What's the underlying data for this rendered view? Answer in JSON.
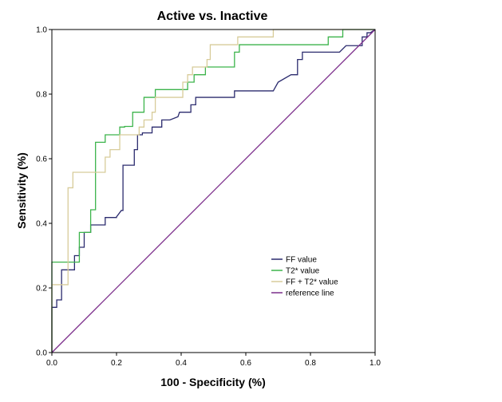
{
  "chart_data": {
    "type": "line",
    "title": "Active vs. Inactive",
    "xlabel": "100 - Specificity (%)",
    "ylabel": "Sensitivity (%)",
    "xlim": [
      0,
      1
    ],
    "ylim": [
      0,
      1
    ],
    "x_ticks": [
      "0.0",
      "0.2",
      "0.4",
      "0.6",
      "0.8",
      "1.0"
    ],
    "y_ticks": [
      "0.0",
      "0.2",
      "0.4",
      "0.6",
      "0.8",
      "1.0"
    ],
    "legend_position": "lower-right",
    "series": [
      {
        "name": "FF value",
        "color": "#2b2b6e",
        "points": [
          [
            0,
            0
          ],
          [
            0,
            0.14
          ],
          [
            0.015,
            0.14
          ],
          [
            0.015,
            0.163
          ],
          [
            0.03,
            0.163
          ],
          [
            0.03,
            0.256
          ],
          [
            0.07,
            0.256
          ],
          [
            0.07,
            0.3
          ],
          [
            0.085,
            0.3
          ],
          [
            0.085,
            0.326
          ],
          [
            0.1,
            0.326
          ],
          [
            0.1,
            0.372
          ],
          [
            0.12,
            0.372
          ],
          [
            0.12,
            0.395
          ],
          [
            0.165,
            0.395
          ],
          [
            0.165,
            0.418
          ],
          [
            0.2,
            0.418
          ],
          [
            0.2,
            0.42
          ],
          [
            0.215,
            0.44
          ],
          [
            0.22,
            0.44
          ],
          [
            0.22,
            0.58
          ],
          [
            0.255,
            0.58
          ],
          [
            0.255,
            0.628
          ],
          [
            0.265,
            0.628
          ],
          [
            0.265,
            0.674
          ],
          [
            0.28,
            0.674
          ],
          [
            0.28,
            0.68
          ],
          [
            0.31,
            0.68
          ],
          [
            0.31,
            0.698
          ],
          [
            0.34,
            0.698
          ],
          [
            0.34,
            0.72
          ],
          [
            0.365,
            0.72
          ],
          [
            0.365,
            0.72
          ],
          [
            0.39,
            0.73
          ],
          [
            0.395,
            0.744
          ],
          [
            0.43,
            0.744
          ],
          [
            0.43,
            0.767
          ],
          [
            0.445,
            0.767
          ],
          [
            0.445,
            0.79
          ],
          [
            0.565,
            0.79
          ],
          [
            0.565,
            0.81
          ],
          [
            0.685,
            0.81
          ],
          [
            0.7,
            0.837
          ],
          [
            0.74,
            0.86
          ],
          [
            0.76,
            0.86
          ],
          [
            0.76,
            0.907
          ],
          [
            0.775,
            0.907
          ],
          [
            0.775,
            0.93
          ],
          [
            0.89,
            0.93
          ],
          [
            0.91,
            0.95
          ],
          [
            0.96,
            0.95
          ],
          [
            0.96,
            0.977
          ],
          [
            0.975,
            0.977
          ],
          [
            0.975,
            0.99
          ],
          [
            0.985,
            0.99
          ],
          [
            1,
            1
          ]
        ]
      },
      {
        "name": "T2* value",
        "color": "#3cb44b",
        "points": [
          [
            0,
            0
          ],
          [
            0,
            0.28
          ],
          [
            0.085,
            0.28
          ],
          [
            0.085,
            0.372
          ],
          [
            0.12,
            0.372
          ],
          [
            0.12,
            0.442
          ],
          [
            0.135,
            0.442
          ],
          [
            0.135,
            0.651
          ],
          [
            0.165,
            0.651
          ],
          [
            0.165,
            0.674
          ],
          [
            0.21,
            0.674
          ],
          [
            0.21,
            0.698
          ],
          [
            0.225,
            0.698
          ],
          [
            0.225,
            0.7
          ],
          [
            0.25,
            0.7
          ],
          [
            0.25,
            0.744
          ],
          [
            0.285,
            0.744
          ],
          [
            0.285,
            0.79
          ],
          [
            0.32,
            0.79
          ],
          [
            0.32,
            0.814
          ],
          [
            0.42,
            0.814
          ],
          [
            0.42,
            0.837
          ],
          [
            0.44,
            0.837
          ],
          [
            0.44,
            0.86
          ],
          [
            0.475,
            0.86
          ],
          [
            0.475,
            0.884
          ],
          [
            0.565,
            0.884
          ],
          [
            0.565,
            0.93
          ],
          [
            0.58,
            0.93
          ],
          [
            0.58,
            0.953
          ],
          [
            0.855,
            0.953
          ],
          [
            0.855,
            0.977
          ],
          [
            0.9,
            0.977
          ],
          [
            0.9,
            1
          ],
          [
            1,
            1
          ]
        ]
      },
      {
        "name": "FF + T2* value",
        "color": "#d8cc9a",
        "points": [
          [
            0,
            0
          ],
          [
            0,
            0.21
          ],
          [
            0.05,
            0.21
          ],
          [
            0.05,
            0.51
          ],
          [
            0.065,
            0.51
          ],
          [
            0.065,
            0.558
          ],
          [
            0.165,
            0.558
          ],
          [
            0.165,
            0.605
          ],
          [
            0.18,
            0.605
          ],
          [
            0.18,
            0.628
          ],
          [
            0.21,
            0.628
          ],
          [
            0.21,
            0.674
          ],
          [
            0.27,
            0.674
          ],
          [
            0.27,
            0.698
          ],
          [
            0.285,
            0.698
          ],
          [
            0.285,
            0.72
          ],
          [
            0.31,
            0.72
          ],
          [
            0.31,
            0.744
          ],
          [
            0.32,
            0.744
          ],
          [
            0.32,
            0.79
          ],
          [
            0.405,
            0.79
          ],
          [
            0.405,
            0.837
          ],
          [
            0.42,
            0.837
          ],
          [
            0.42,
            0.86
          ],
          [
            0.435,
            0.86
          ],
          [
            0.435,
            0.884
          ],
          [
            0.48,
            0.884
          ],
          [
            0.48,
            0.907
          ],
          [
            0.49,
            0.907
          ],
          [
            0.49,
            0.953
          ],
          [
            0.575,
            0.953
          ],
          [
            0.575,
            0.977
          ],
          [
            0.685,
            0.977
          ],
          [
            0.685,
            1
          ],
          [
            1,
            1
          ]
        ]
      },
      {
        "name": "reference line",
        "color": "#7b2d8b",
        "points": [
          [
            0,
            0
          ],
          [
            1,
            1
          ]
        ]
      }
    ]
  }
}
